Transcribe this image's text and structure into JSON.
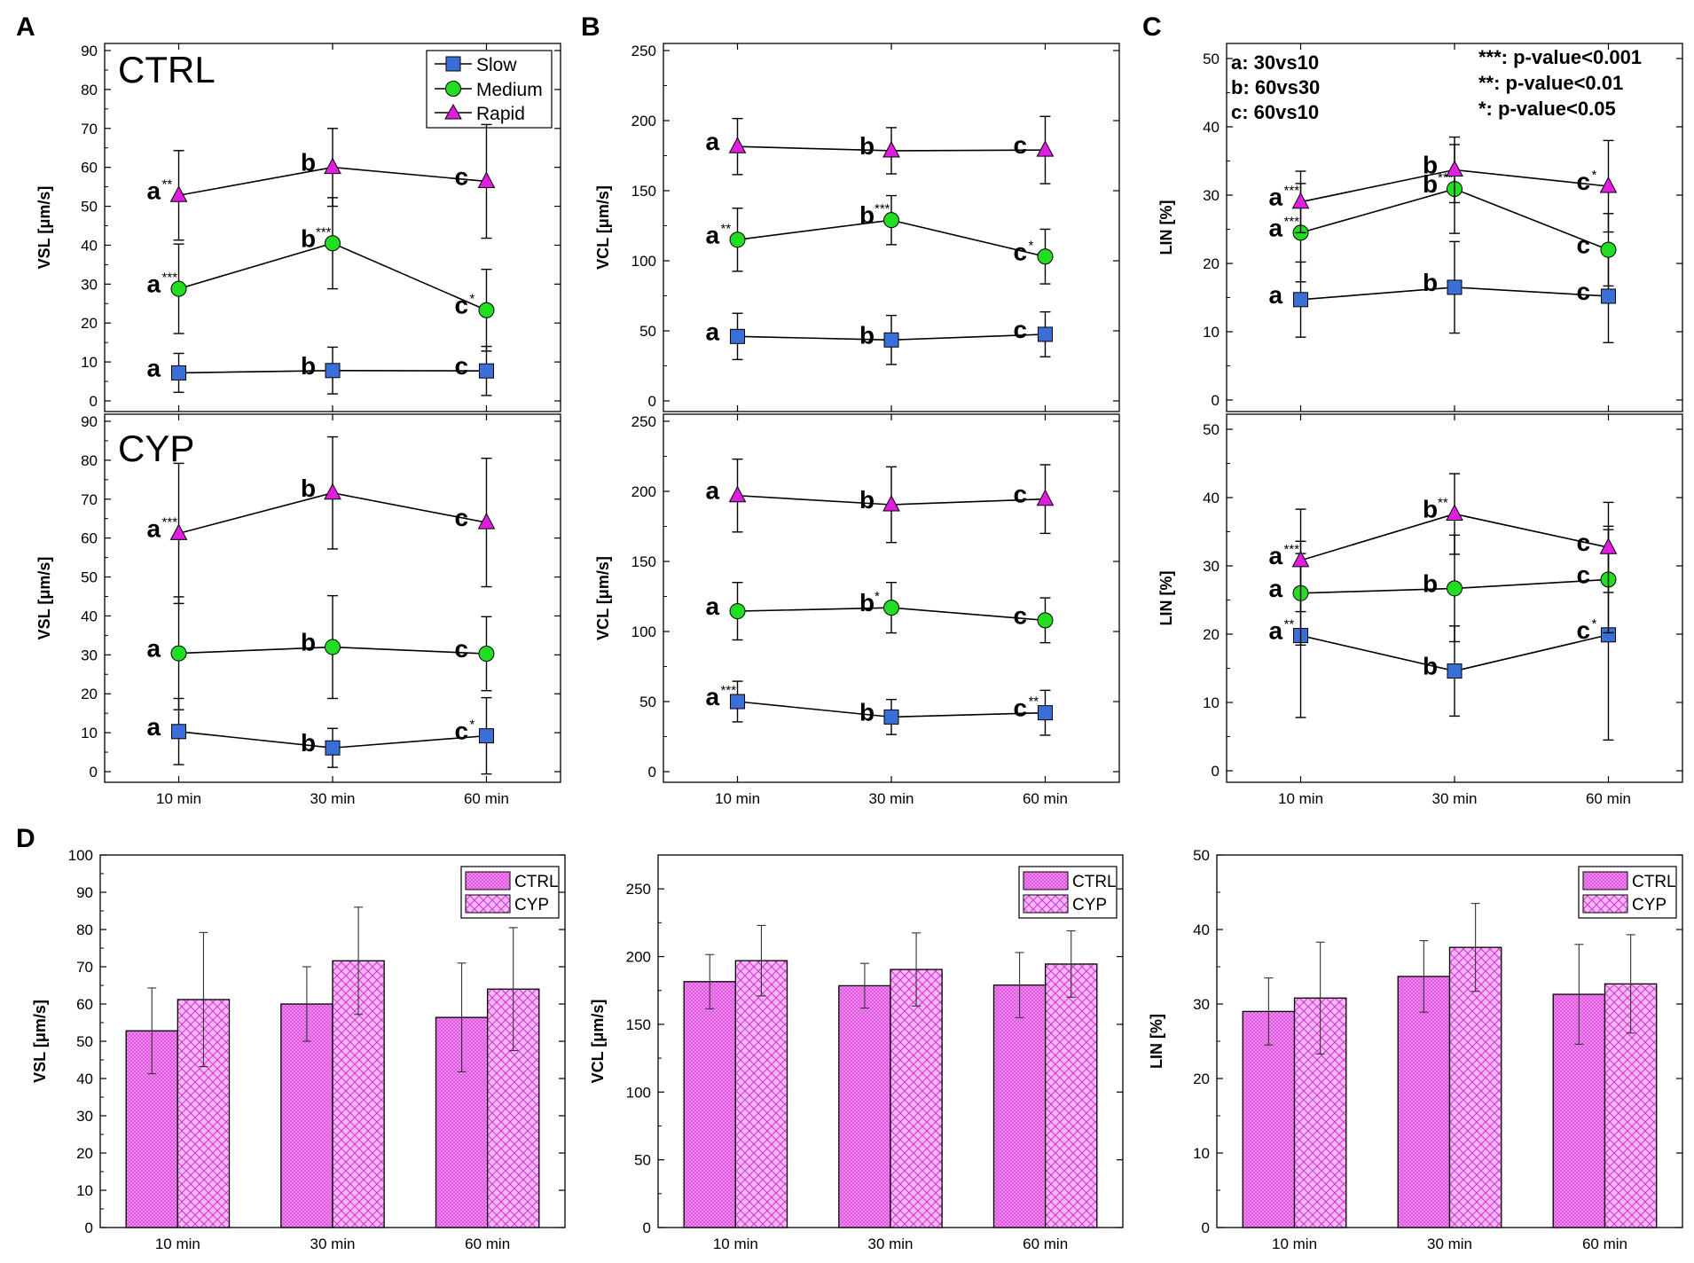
{
  "colors": {
    "slow": "#3a6fd8",
    "medium": "#22dd22",
    "rapid": "#e01ee0",
    "bar": "#f07af0",
    "line": "#000000",
    "hatch": "#c020c0"
  },
  "panel_letters": {
    "a": "A",
    "b": "B",
    "c": "C",
    "d": "D"
  },
  "legend": {
    "slow": "Slow",
    "medium": "Medium",
    "rapid": "Rapid",
    "ctrl": "CTRL",
    "cyp": "CYP"
  },
  "group_labels": {
    "ctrl": "CTRL",
    "cyp": "CYP"
  },
  "key_text": {
    "left": [
      "a: 30vs10",
      "b: 60vs30",
      "c: 60vs10"
    ],
    "right": [
      "***: p-value<0.001",
      "**: p-value<0.01",
      "*: p-value<0.05"
    ]
  },
  "chart_data": [
    {
      "id": "A_ctrl",
      "type": "line",
      "ylabel": "VSL [μm/s]",
      "ylim": [
        0,
        90
      ],
      "yticks": [
        0,
        10,
        20,
        30,
        40,
        50,
        60,
        70,
        80,
        90
      ],
      "categories": [
        "10 min",
        "30 min",
        "60 min"
      ],
      "series": [
        {
          "name": "Slow",
          "values": [
            7.2,
            7.8,
            7.7
          ],
          "err": [
            5,
            6,
            6.3
          ],
          "letters": [
            "a",
            "b",
            "c"
          ],
          "sig": [
            "",
            "",
            ""
          ]
        },
        {
          "name": "Medium",
          "values": [
            28.8,
            40.5,
            23.3
          ],
          "err": [
            11.5,
            11.7,
            10.5
          ],
          "letters": [
            "a",
            "b",
            "c"
          ],
          "sig": [
            "***",
            "***",
            "*"
          ]
        },
        {
          "name": "Rapid",
          "values": [
            52.8,
            60,
            56.4
          ],
          "err": [
            11.5,
            10,
            14.6
          ],
          "letters": [
            "a",
            "b",
            "c"
          ],
          "sig": [
            "**",
            "",
            ""
          ]
        }
      ]
    },
    {
      "id": "B_ctrl",
      "type": "line",
      "ylabel": "VCL [μm/s]",
      "ylim": [
        0,
        250
      ],
      "yticks": [
        0,
        50,
        100,
        150,
        200,
        250
      ],
      "categories": [
        "10 min",
        "30 min",
        "60 min"
      ],
      "series": [
        {
          "name": "Slow",
          "values": [
            46,
            43.5,
            47.5
          ],
          "err": [
            16.5,
            17.5,
            16
          ],
          "letters": [
            "a",
            "b",
            "c"
          ],
          "sig": [
            "",
            "",
            ""
          ]
        },
        {
          "name": "Medium",
          "values": [
            115,
            129,
            103
          ],
          "err": [
            22.5,
            17.5,
            19.5
          ],
          "letters": [
            "a",
            "b",
            "c"
          ],
          "sig": [
            "**",
            "***",
            "*"
          ]
        },
        {
          "name": "Rapid",
          "values": [
            181.5,
            178.5,
            179
          ],
          "err": [
            20,
            16.5,
            24
          ],
          "letters": [
            "a",
            "b",
            "c"
          ],
          "sig": [
            "",
            "",
            ""
          ]
        }
      ]
    },
    {
      "id": "C_ctrl",
      "type": "line",
      "ylabel": "LIN [%]",
      "ylim": [
        0,
        50
      ],
      "yticks": [
        0,
        10,
        20,
        30,
        40,
        50
      ],
      "categories": [
        "10 min",
        "30 min",
        "60 min"
      ],
      "series": [
        {
          "name": "Slow",
          "values": [
            14.7,
            16.5,
            15.2
          ],
          "err": [
            5.5,
            6.7,
            6.8
          ],
          "letters": [
            "a",
            "b",
            "c"
          ],
          "sig": [
            "",
            "",
            ""
          ]
        },
        {
          "name": "Medium",
          "values": [
            24.5,
            30.9,
            22
          ],
          "err": [
            7.2,
            6.5,
            5.3
          ],
          "letters": [
            "a",
            "b",
            "c"
          ],
          "sig": [
            "***",
            "***",
            ""
          ]
        },
        {
          "name": "Rapid",
          "values": [
            29,
            33.7,
            31.3
          ],
          "err": [
            4.5,
            4.8,
            6.7
          ],
          "letters": [
            "a",
            "b",
            "c"
          ],
          "sig": [
            "***",
            "",
            "*"
          ]
        }
      ]
    },
    {
      "id": "A_cyp",
      "type": "line",
      "ylabel": "VSL [μm/s]",
      "ylim": [
        0,
        90
      ],
      "yticks": [
        0,
        10,
        20,
        30,
        40,
        50,
        60,
        70,
        80,
        90
      ],
      "categories": [
        "10 min",
        "30 min",
        "60 min"
      ],
      "series": [
        {
          "name": "Slow",
          "values": [
            10.3,
            6.1,
            9.2
          ],
          "err": [
            8.5,
            5,
            9.8
          ],
          "letters": [
            "a",
            "b",
            "c"
          ],
          "sig": [
            "",
            "",
            "*"
          ]
        },
        {
          "name": "Medium",
          "values": [
            30.4,
            32,
            30.3
          ],
          "err": [
            14.5,
            13.2,
            9.5
          ],
          "letters": [
            "a",
            "b",
            "c"
          ],
          "sig": [
            "",
            "",
            ""
          ]
        },
        {
          "name": "Rapid",
          "values": [
            61.2,
            71.6,
            64
          ],
          "err": [
            18,
            14.4,
            16.5
          ],
          "letters": [
            "a",
            "b",
            "c"
          ],
          "sig": [
            "***",
            "",
            ""
          ]
        }
      ]
    },
    {
      "id": "B_cyp",
      "type": "line",
      "ylabel": "VCL [μm/s]",
      "ylim": [
        0,
        250
      ],
      "yticks": [
        0,
        50,
        100,
        150,
        200,
        250
      ],
      "categories": [
        "10 min",
        "30 min",
        "60 min"
      ],
      "series": [
        {
          "name": "Slow",
          "values": [
            50,
            39,
            42
          ],
          "err": [
            14.5,
            12.5,
            16
          ],
          "letters": [
            "a",
            "b",
            "c"
          ],
          "sig": [
            "***",
            "",
            "**"
          ]
        },
        {
          "name": "Medium",
          "values": [
            114.5,
            117,
            108
          ],
          "err": [
            20.5,
            18,
            16
          ],
          "letters": [
            "a",
            "b",
            "c"
          ],
          "sig": [
            "",
            "*",
            ""
          ]
        },
        {
          "name": "Rapid",
          "values": [
            197,
            190.5,
            194.5
          ],
          "err": [
            26,
            27,
            24.5
          ],
          "letters": [
            "a",
            "b",
            "c"
          ],
          "sig": [
            "",
            "",
            ""
          ]
        }
      ]
    },
    {
      "id": "C_cyp",
      "type": "line",
      "ylabel": "LIN [%]",
      "ylim": [
        0,
        50
      ],
      "yticks": [
        0,
        10,
        20,
        30,
        40,
        50
      ],
      "categories": [
        "10 min",
        "30 min",
        "60 min"
      ],
      "series": [
        {
          "name": "Slow",
          "values": [
            19.8,
            14.6,
            19.9
          ],
          "err": [
            12,
            6.6,
            15.4
          ],
          "letters": [
            "a",
            "b",
            "c"
          ],
          "sig": [
            "**",
            "",
            "*"
          ]
        },
        {
          "name": "Medium",
          "values": [
            26,
            26.7,
            28
          ],
          "err": [
            7.6,
            7.8,
            7.8
          ],
          "letters": [
            "a",
            "b",
            "c"
          ],
          "sig": [
            "",
            "",
            ""
          ]
        },
        {
          "name": "Rapid",
          "values": [
            30.8,
            37.6,
            32.7
          ],
          "err": [
            7.5,
            5.9,
            6.6
          ],
          "letters": [
            "a",
            "b",
            "c"
          ],
          "sig": [
            "***",
            "**",
            ""
          ]
        }
      ]
    },
    {
      "id": "D_vsl",
      "type": "bar",
      "ylabel": "VSL [μm/s]",
      "ylim": [
        0,
        100
      ],
      "yticks": [
        0,
        10,
        20,
        30,
        40,
        50,
        60,
        70,
        80,
        90,
        100
      ],
      "categories": [
        "10 min",
        "30 min",
        "60 min"
      ],
      "series": [
        {
          "name": "CTRL",
          "values": [
            52.8,
            60,
            56.4
          ],
          "err": [
            11.5,
            10,
            14.6
          ]
        },
        {
          "name": "CYP",
          "values": [
            61.2,
            71.6,
            64
          ],
          "err": [
            18,
            14.4,
            16.5
          ]
        }
      ]
    },
    {
      "id": "D_vcl",
      "type": "bar",
      "ylabel": "VCL [μm/s]",
      "ylim": [
        0,
        275
      ],
      "yticks": [
        0,
        50,
        100,
        150,
        200,
        250
      ],
      "categories": [
        "10 min",
        "30 min",
        "60 min"
      ],
      "series": [
        {
          "name": "CTRL",
          "values": [
            181.5,
            178.5,
            179
          ],
          "err": [
            20,
            16.5,
            24
          ]
        },
        {
          "name": "CYP",
          "values": [
            197,
            190.5,
            194.5
          ],
          "err": [
            26,
            27,
            24.5
          ]
        }
      ]
    },
    {
      "id": "D_lin",
      "type": "bar",
      "ylabel": "LIN [%]",
      "ylim": [
        0,
        50
      ],
      "yticks": [
        0,
        10,
        20,
        30,
        40,
        50
      ],
      "categories": [
        "10 min",
        "30 min",
        "60 min"
      ],
      "series": [
        {
          "name": "CTRL",
          "values": [
            29,
            33.7,
            31.3
          ],
          "err": [
            4.5,
            4.8,
            6.7
          ]
        },
        {
          "name": "CYP",
          "values": [
            30.8,
            37.6,
            32.7
          ],
          "err": [
            7.5,
            5.9,
            6.6
          ]
        }
      ]
    }
  ]
}
